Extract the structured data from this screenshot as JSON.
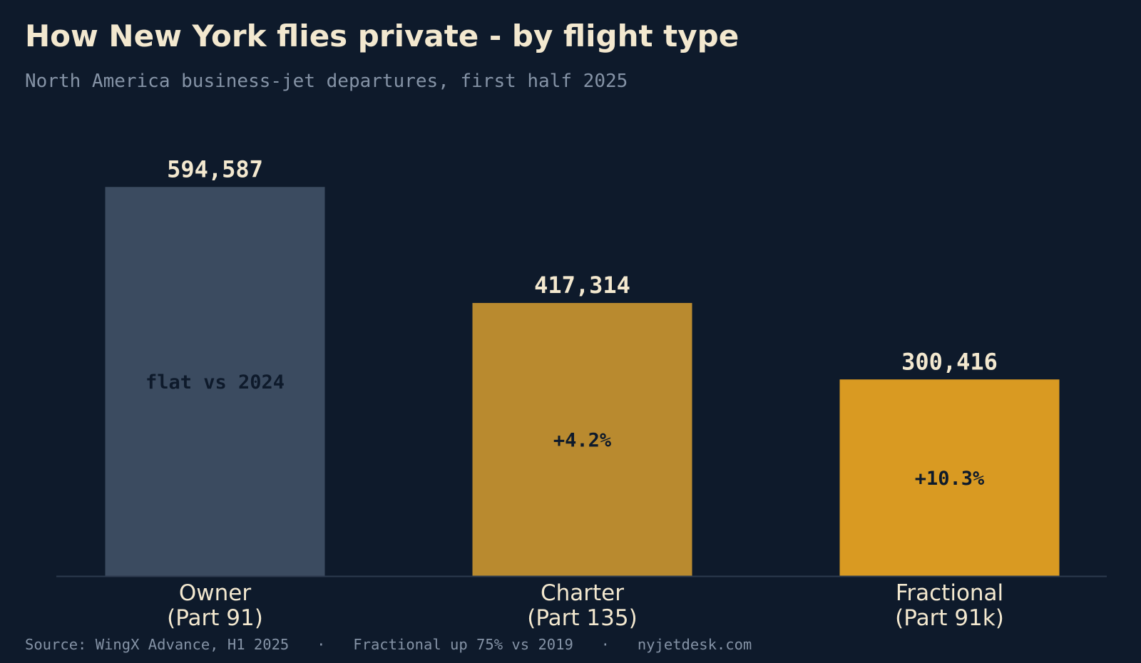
{
  "header": {
    "title": "How New York flies private - by flight type",
    "subtitle": "North America business-jet departures, first half 2025"
  },
  "footer": {
    "source": "Source: WingX Advance, H1 2025",
    "note": "Fractional up 75% vs 2019",
    "site": "nyjetdesk.com",
    "separator": "·"
  },
  "colors": {
    "background": "#0e1a2b",
    "text": "#f3e8cf",
    "muted": "#8593a6",
    "axis": "#2c3a4e"
  },
  "chart_data": {
    "type": "bar",
    "categories": [
      [
        "Owner",
        "(Part 91)"
      ],
      [
        "Charter",
        "(Part 135)"
      ],
      [
        "Fractional",
        "(Part 91k)"
      ]
    ],
    "values": [
      594587,
      417314,
      300416
    ],
    "value_labels": [
      "594,587",
      "417,314",
      "300,416"
    ],
    "change_labels": [
      "flat vs 2024",
      "+4.2%",
      "+10.3%"
    ],
    "bar_colors": [
      "#3b4b60",
      "#b98a2f",
      "#d99a22"
    ],
    "ylim": [
      0,
      650000
    ],
    "grid": false,
    "legend": "none",
    "xlabel": "",
    "ylabel": ""
  }
}
